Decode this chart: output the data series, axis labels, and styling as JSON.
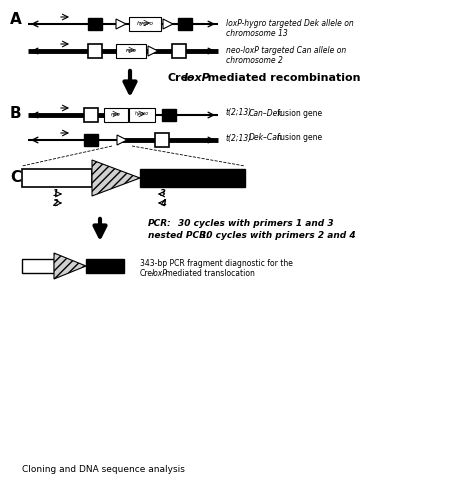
{
  "bg_color": "#ffffff",
  "section_A_label": "A",
  "section_B_label": "B",
  "section_C_label": "C",
  "arrow_label_bold": "Cre-",
  "arrow_label_italic": "loxP",
  "arrow_label_rest": "-mediated recombination",
  "loxP_hygro_label_line1": "loxP-hygro targeted Dek allele on",
  "loxP_hygro_label_line2": "chromosome 13",
  "neo_loxP_label_line1": "neo-loxP targeted Can allele on",
  "neo_loxP_label_line2": "chromosome 2",
  "fusion1_prefix": "t(2;13)",
  "fusion1_italic": "Can–Dek",
  "fusion1_rest": " fusion gene",
  "fusion2_prefix": "t(2;13)",
  "fusion2_italic": "Dek–Can",
  "fusion2_rest": " fusion gene",
  "pcr_label": "PCR:",
  "pcr_detail": "30 cycles with primers 1 and 3",
  "nested_pcr_label": "nested PCR:",
  "nested_pcr_detail": "30 cycles with primers 2 and 4",
  "result_text1": "343-bp PCR fragment diagnostic for the",
  "result_text2_prefix": "Cre-",
  "result_text2_italic": "loxP",
  "result_text2_rest": " mediated translocation",
  "cloning_text": "Cloning and DNA sequence analysis"
}
